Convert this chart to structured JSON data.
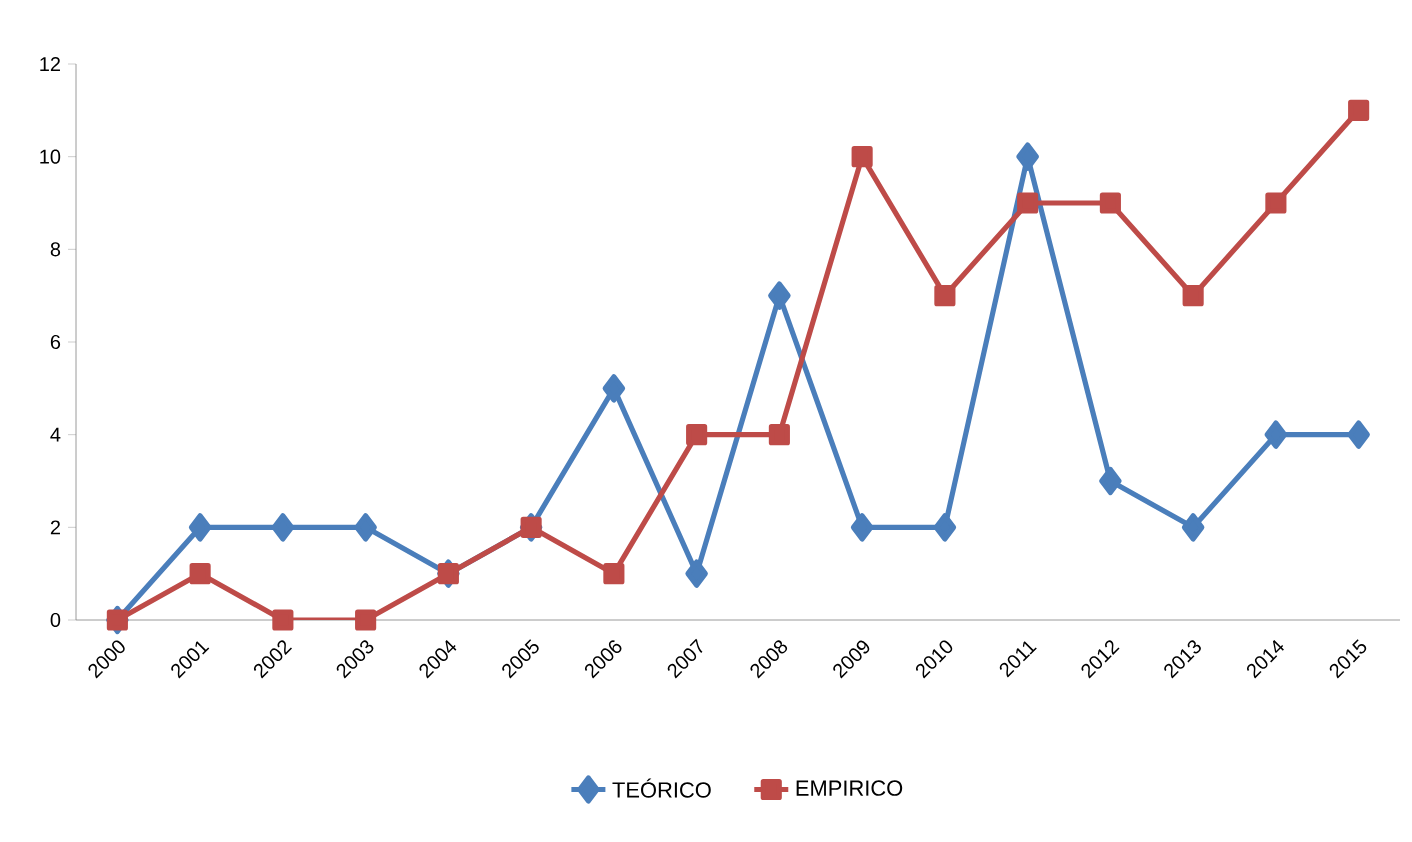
{
  "chart_data": {
    "type": "line",
    "categories": [
      "2000",
      "2001",
      "2002",
      "2003",
      "2004",
      "2005",
      "2006",
      "2007",
      "2008",
      "2009",
      "2010",
      "2011",
      "2012",
      "2013",
      "2014",
      "2015"
    ],
    "series": [
      {
        "name": "TEÓRICO",
        "color": "#4a7ebb",
        "marker": "diamond",
        "values": [
          0,
          2,
          2,
          2,
          1,
          2,
          5,
          1,
          7,
          2,
          2,
          10,
          3,
          2,
          4,
          4
        ]
      },
      {
        "name": "EMPIRICO",
        "color": "#be4b48",
        "marker": "square",
        "values": [
          0,
          1,
          0,
          0,
          1,
          2,
          1,
          4,
          4,
          10,
          7,
          9,
          9,
          7,
          9,
          11
        ]
      }
    ],
    "ylim": [
      0,
      12
    ],
    "yticks": [
      0,
      2,
      4,
      6,
      8,
      10,
      12
    ],
    "grid": false,
    "legend": "bottom",
    "line_style": "solid"
  }
}
